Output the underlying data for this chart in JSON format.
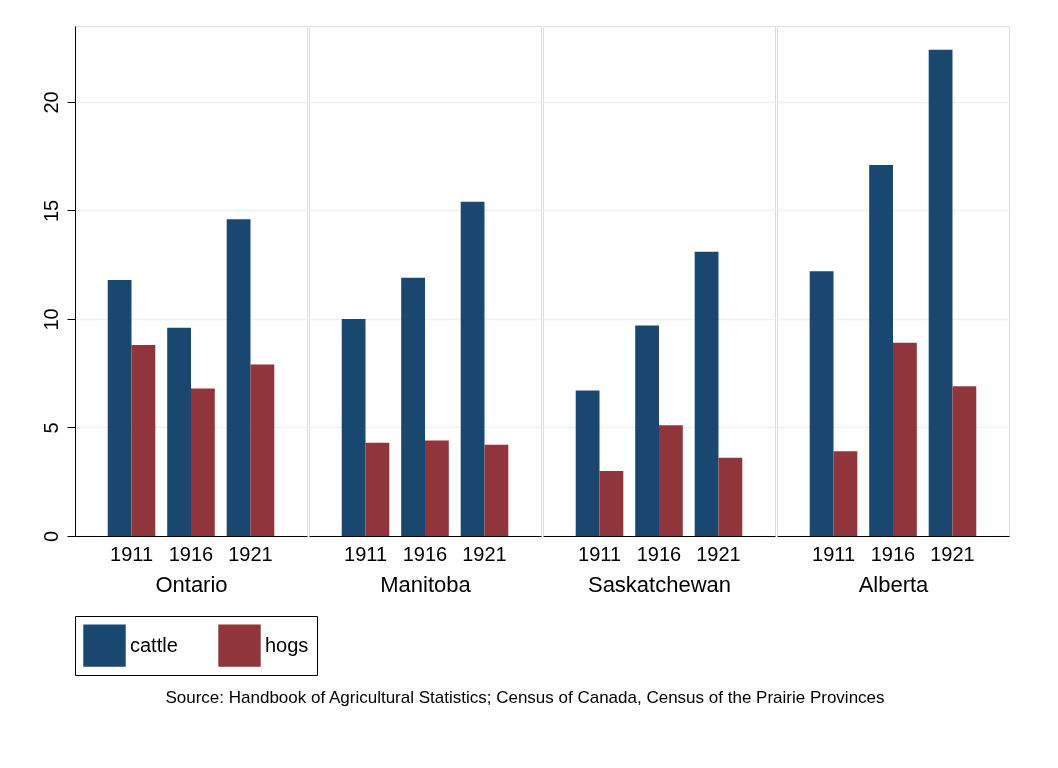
{
  "chart_data": [
    {
      "type": "bar",
      "xlabel": "Ontario",
      "categories": [
        "1911",
        "1916",
        "1921"
      ],
      "series": [
        {
          "name": "cattle",
          "color": "#1a476f",
          "values": [
            11.8,
            9.6,
            14.6
          ]
        },
        {
          "name": "hogs",
          "color": "#90353b",
          "values": [
            8.8,
            6.8,
            7.9
          ]
        }
      ],
      "ylim": [
        0,
        23.5
      ],
      "yticks": [
        0,
        5,
        10,
        15,
        20
      ],
      "grid": "y",
      "legend": "bottom",
      "annotations": [
        "Source: Handbook of Agricultural Statistics; Census of Canada, Census of the Prairie Provinces"
      ]
    },
    {
      "type": "bar",
      "xlabel": "Manitoba",
      "categories": [
        "1911",
        "1916",
        "1921"
      ],
      "series": [
        {
          "name": "cattle",
          "color": "#1a476f",
          "values": [
            10.0,
            11.9,
            15.4
          ]
        },
        {
          "name": "hogs",
          "color": "#90353b",
          "values": [
            4.3,
            4.4,
            4.2
          ]
        }
      ],
      "ylim": [
        0,
        23.5
      ],
      "yticks": [
        0,
        5,
        10,
        15,
        20
      ],
      "grid": "y",
      "legend": "bottom",
      "tick_labels": "x"
    },
    {
      "type": "bar",
      "xlabel": "Saskatchewan",
      "categories": [
        "1911",
        "1916",
        "1921"
      ],
      "series": [
        {
          "name": "cattle",
          "color": "#1a476f",
          "values": [
            6.7,
            9.7,
            13.1
          ]
        },
        {
          "name": "hogs",
          "color": "#90353b",
          "values": [
            3.0,
            5.1,
            3.6
          ]
        }
      ],
      "ylim": [
        0,
        23.5
      ],
      "yticks": [
        0,
        5,
        10,
        15,
        20
      ],
      "grid": "y",
      "legend": "bottom",
      "tick_labels": "x"
    },
    {
      "type": "bar",
      "xlabel": "Alberta",
      "categories": [
        "1911",
        "1916",
        "1921"
      ],
      "series": [
        {
          "name": "cattle",
          "color": "#1a476f",
          "values": [
            12.2,
            17.1,
            22.4
          ]
        },
        {
          "name": "hogs",
          "color": "#90353b",
          "values": [
            3.9,
            8.9,
            6.9
          ]
        }
      ],
      "ylim": [
        0,
        23.5
      ],
      "yticks": [
        0,
        5,
        10,
        15,
        20
      ],
      "grid": "y",
      "legend": "bottom",
      "tick_labels": "x"
    }
  ]
}
